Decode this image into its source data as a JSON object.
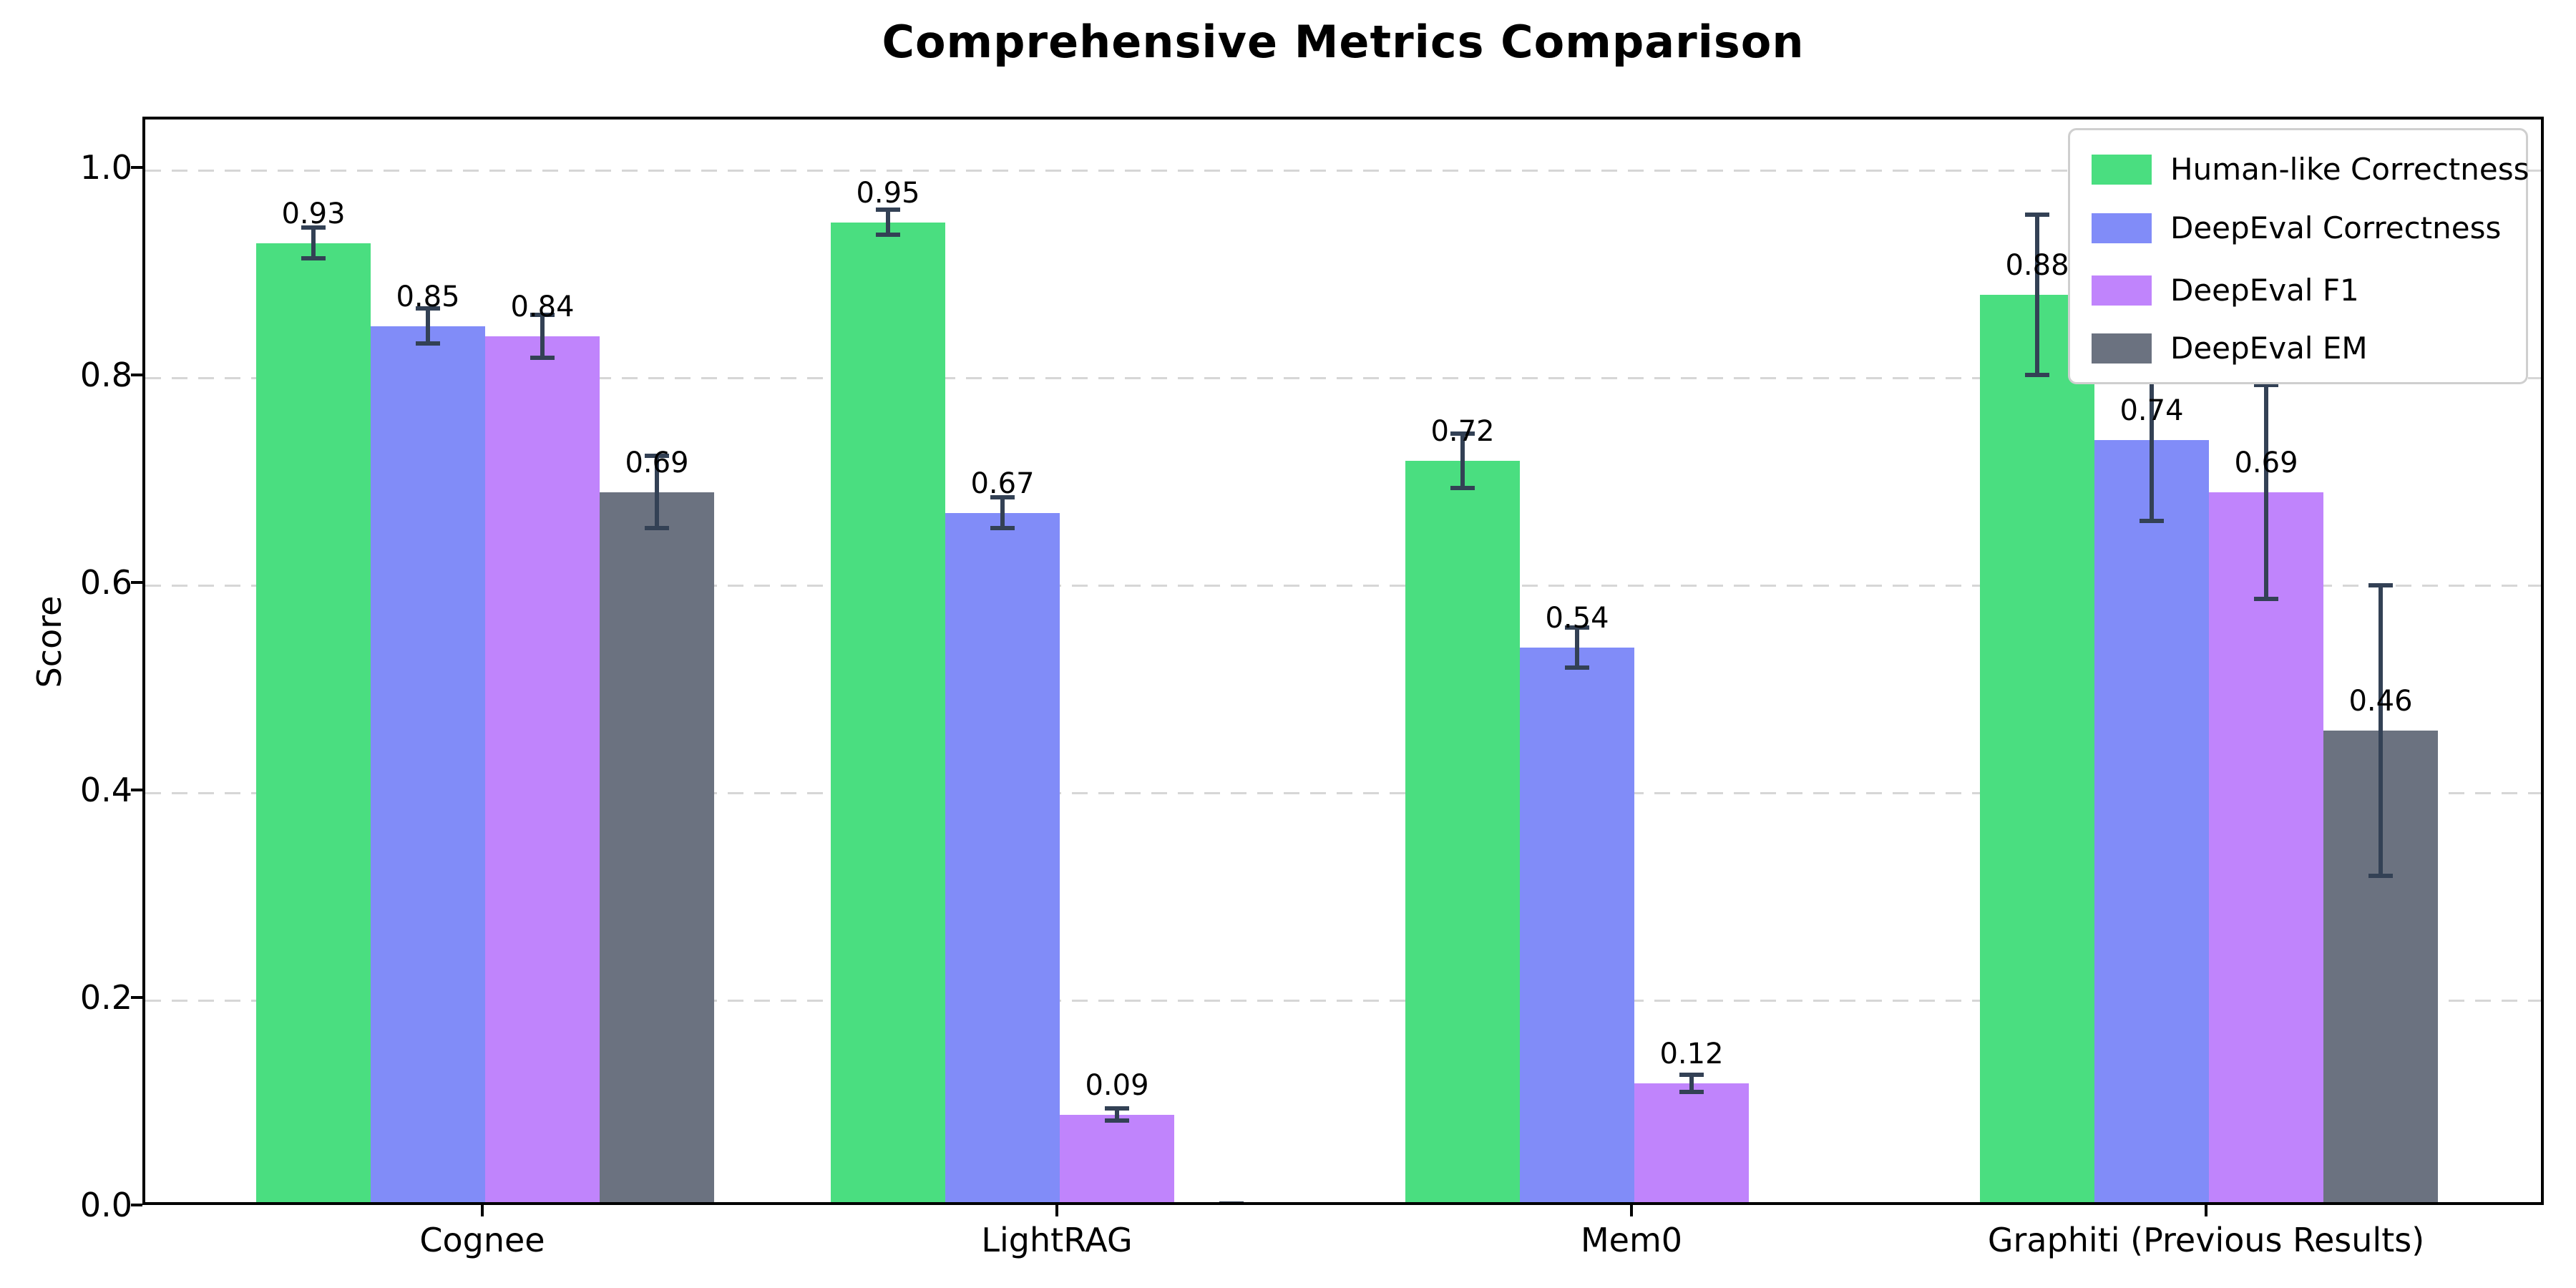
{
  "title": "Comprehensive Metrics Comparison",
  "chart_data": {
    "type": "bar",
    "title": "Comprehensive Metrics Comparison",
    "xlabel": "",
    "ylabel": "Score",
    "ylim": [
      0.0,
      1.05
    ],
    "grid": "horizontal-dashed",
    "legend_position": "upper right",
    "categories": [
      "Cognee",
      "LightRAG",
      "Mem0",
      "Graphiti (Previous Results)"
    ],
    "yticks": [
      {
        "value": 0.0,
        "label": "0.0"
      },
      {
        "value": 0.2,
        "label": "0.2"
      },
      {
        "value": 0.4,
        "label": "0.4"
      },
      {
        "value": 0.6,
        "label": "0.6"
      },
      {
        "value": 0.8,
        "label": "0.8"
      },
      {
        "value": 1.0,
        "label": "1.0"
      }
    ],
    "series": [
      {
        "name": "Human-like Correctness",
        "color": "#4ade80",
        "values": [
          0.93,
          0.95,
          0.72,
          0.88
        ],
        "errors": [
          0.015,
          0.012,
          0.026,
          0.077
        ],
        "labels": [
          "0.93",
          "0.95",
          "0.72",
          "0.88"
        ]
      },
      {
        "name": "DeepEval Correctness",
        "color": "#818cf8",
        "values": [
          0.85,
          0.67,
          0.54,
          0.74
        ],
        "errors": [
          0.017,
          0.015,
          0.019,
          0.078
        ],
        "labels": [
          "0.85",
          "0.67",
          "0.54",
          "0.74"
        ]
      },
      {
        "name": "DeepEval F1",
        "color": "#c084fc",
        "values": [
          0.84,
          0.09,
          0.12,
          0.69
        ],
        "errors": [
          0.021,
          0.006,
          0.008,
          0.103
        ],
        "labels": [
          "0.84",
          "0.09",
          "0.12",
          "0.69"
        ]
      },
      {
        "name": "DeepEval EM",
        "color": "#6b7280",
        "values": [
          0.69,
          0.0,
          0.0,
          0.46
        ],
        "errors": [
          0.035,
          0.004,
          0.003,
          0.14
        ],
        "labels": [
          "0.69",
          null,
          null,
          "0.46"
        ]
      }
    ],
    "error_bar_color": "#334155"
  }
}
